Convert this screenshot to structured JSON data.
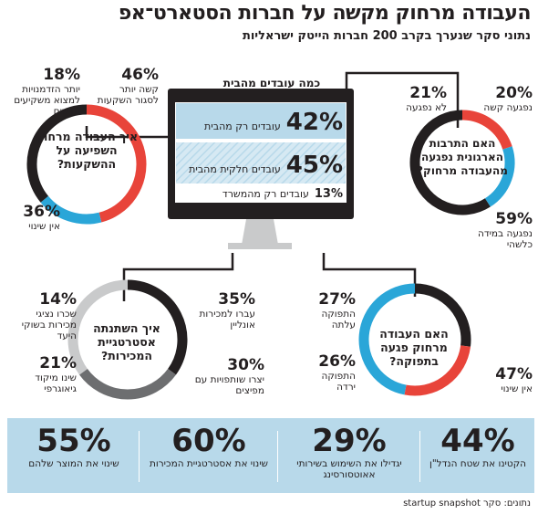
{
  "title": "העבודה מרחוק מקשה על חברות הסטארט־אפ",
  "subtitle": "נתוני סקר שנערך בקרב 200 חברות הייטק ישראליות",
  "colors": {
    "red": "#e8443a",
    "blue": "#2aa6d8",
    "black": "#231f20",
    "gray_dark": "#6d6e70",
    "gray_light": "#c9cacb",
    "panel": "#b8d9ea"
  },
  "chart_data": [
    {
      "type": "pie",
      "title": "איך העבודה מרחוק השפיעה על ההשקעות?",
      "categories": [
        "קשה יותר לסגור השקעות",
        "יותר הזדמנויות למצוא משקיעים חדשים",
        "אין שינוי"
      ],
      "values": [
        46,
        18,
        36
      ],
      "labels": {
        "a_pct": "46%",
        "a_text": "קשה יותר לסגור השקעות",
        "b_pct": "18%",
        "b_text": "יותר הזדמנויות למצוא משקיעים חדשים",
        "c_pct": "36%",
        "c_text": "אין שינוי"
      }
    },
    {
      "type": "pie",
      "title": "האם התרבות הארגונית נפגעה מהעבודה מרחוק?",
      "categories": [
        "נפגעה קשה",
        "לא נפגעה",
        "נפגעה במידה כלשהי"
      ],
      "values": [
        20,
        21,
        59
      ],
      "labels": {
        "a_pct": "20%",
        "a_text": "נפגעה קשה",
        "b_pct": "21%",
        "b_text": "לא נפגעה",
        "c_pct": "59%",
        "c_text": "נפגעה במידה כלשהי"
      }
    },
    {
      "type": "pie",
      "title": "איך השתנתה אסטרטגיית המכירות?",
      "categories": [
        "עברו למכירות אונליין",
        "יצרו שותפויות עם מפיצים",
        "שכרו נציגי מכירות בשוקי היעד",
        "שינו מיקוד גיאוגרפי"
      ],
      "values": [
        35,
        30,
        14,
        21
      ],
      "labels": {
        "a_pct": "35%",
        "a_text": "עברו למכירות אונליין",
        "b_pct": "30%",
        "b_text": "יצרו שותפויות עם מפיצים",
        "c_pct": "14%",
        "c_text": "שכרו נציגי מכירות בשוקי היעד",
        "d_pct": "21%",
        "d_text": "שינו מיקוד גיאוגרפי"
      }
    },
    {
      "type": "pie",
      "title": "האם העבודה מרחוק פגעה בתפוקה?",
      "categories": [
        "התפוקה עלתה",
        "התפוקה ירדה",
        "אין שינוי"
      ],
      "values": [
        27,
        26,
        47
      ],
      "labels": {
        "a_pct": "27%",
        "a_text": "התפוקה עלתה",
        "b_pct": "26%",
        "b_text": "התפוקה ירדה",
        "c_pct": "47%",
        "c_text": "אין שינוי"
      }
    },
    {
      "type": "bar",
      "title": "כמה עובדים מהבית",
      "categories": [
        "עובדים רק מהבית",
        "עובדים חלקית מהבית",
        "עובדים רק מהמשרד"
      ],
      "values": [
        42,
        45,
        13
      ],
      "pct_labels": [
        "42%",
        "45%",
        "13%"
      ]
    }
  ],
  "bottom_stats": [
    {
      "value": "44%",
      "caption": "הקטינו את שטח הנדל\"ן"
    },
    {
      "value": "29%",
      "caption": "יגדילו את השימוש בשירותי אאוטסורסינג"
    },
    {
      "value": "60%",
      "caption": "שינוי את אסטרטגיית המכירות"
    },
    {
      "value": "55%",
      "caption": "שינוי את המוצר שלהם"
    }
  ],
  "source": "נתונים: סקר startup snapshot"
}
